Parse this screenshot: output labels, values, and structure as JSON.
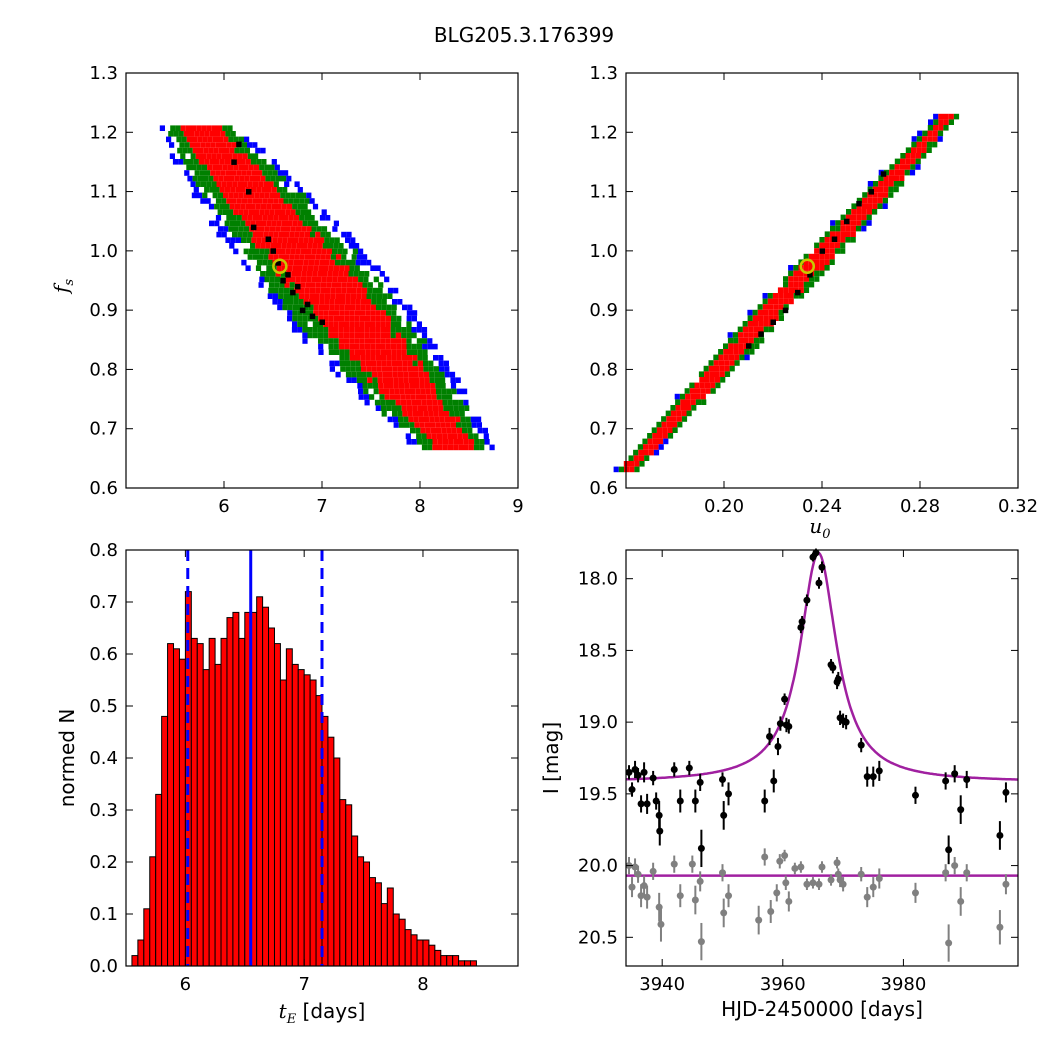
{
  "figure": {
    "title": "BLG205.3.176399"
  },
  "chart_data": [
    {
      "type": "scatter",
      "name": "fs-vs-tE-posterior",
      "xlim": [
        5,
        9
      ],
      "ylim": [
        0.6,
        1.3
      ],
      "xticks": [
        "6",
        "7",
        "8",
        "9"
      ],
      "yticks": [
        "0.6",
        "0.7",
        "0.8",
        "0.9",
        "1.0",
        "1.1",
        "1.2",
        "1.3"
      ],
      "xlabel": "",
      "ylabel": "f",
      "ylabel_sub": "s",
      "colors": {
        "outer": "#0000ff",
        "mid": "#008000",
        "inner": "#ff0000",
        "core": "#000000",
        "best": "#c8c800"
      },
      "best_fit": {
        "x": 6.57,
        "y": 0.974
      },
      "band": {
        "x_start": 5.72,
        "y_start": 1.21,
        "x_end": 8.3,
        "y_end": 0.68,
        "inner_half_width": 0.35,
        "mid_half_width": 0.55,
        "outer_half_width": 0.7
      },
      "core_points": [
        [
          6.1,
          1.15
        ],
        [
          6.25,
          1.1
        ],
        [
          6.3,
          1.04
        ],
        [
          6.5,
          1.0
        ],
        [
          6.55,
          0.98
        ],
        [
          6.6,
          0.95
        ],
        [
          6.7,
          0.93
        ],
        [
          6.8,
          0.9
        ],
        [
          6.9,
          0.89
        ],
        [
          7.0,
          0.88
        ],
        [
          6.15,
          1.18
        ],
        [
          6.45,
          1.02
        ],
        [
          6.65,
          0.96
        ],
        [
          6.75,
          0.94
        ],
        [
          6.85,
          0.91
        ]
      ]
    },
    {
      "type": "scatter",
      "name": "fs-vs-u0-posterior",
      "xlim": [
        0.16,
        0.32
      ],
      "ylim": [
        0.6,
        1.3
      ],
      "xticks": [
        "0.20",
        "0.24",
        "0.28",
        "0.32"
      ],
      "yticks": [
        "0.6",
        "0.7",
        "0.8",
        "0.9",
        "1.0",
        "1.1",
        "1.2",
        "1.3"
      ],
      "xlabel": "u",
      "xlabel_sub": "0",
      "colors": {
        "outer": "#0000ff",
        "mid": "#008000",
        "inner": "#ff0000",
        "core": "#000000",
        "best": "#c8c800"
      },
      "best_fit": {
        "x": 0.234,
        "y": 0.974
      },
      "band": {
        "x_start": 0.162,
        "y_start": 0.645,
        "x_end": 0.288,
        "y_end": 1.22,
        "inner_half_width": 0.0045,
        "mid_half_width": 0.007,
        "outer_half_width": 0.0085
      },
      "core_points": [
        [
          0.215,
          0.86
        ],
        [
          0.22,
          0.88
        ],
        [
          0.225,
          0.9
        ],
        [
          0.23,
          0.93
        ],
        [
          0.235,
          0.96
        ],
        [
          0.24,
          1.0
        ],
        [
          0.245,
          1.02
        ],
        [
          0.25,
          1.05
        ],
        [
          0.255,
          1.08
        ],
        [
          0.26,
          1.1
        ],
        [
          0.265,
          1.13
        ],
        [
          0.21,
          0.84
        ]
      ]
    },
    {
      "type": "bar",
      "name": "tE-histogram",
      "xlim": [
        5.5,
        8.8
      ],
      "ylim": [
        0.0,
        0.8
      ],
      "xticks": [
        "6",
        "7",
        "8"
      ],
      "yticks": [
        "0.0",
        "0.1",
        "0.2",
        "0.3",
        "0.4",
        "0.5",
        "0.6",
        "0.7",
        "0.8"
      ],
      "xlabel_sym": "t",
      "xlabel_sub": "E",
      "xlabel_rest": " [days]",
      "ylabel": "normed N",
      "bin_start": 5.55,
      "bin_width": 0.05,
      "values": [
        0.02,
        0.05,
        0.11,
        0.21,
        0.33,
        0.48,
        0.62,
        0.61,
        0.59,
        0.72,
        0.63,
        0.62,
        0.57,
        0.63,
        0.58,
        0.63,
        0.67,
        0.68,
        0.63,
        0.68,
        0.68,
        0.71,
        0.69,
        0.65,
        0.62,
        0.55,
        0.61,
        0.58,
        0.57,
        0.56,
        0.55,
        0.52,
        0.48,
        0.44,
        0.4,
        0.32,
        0.31,
        0.25,
        0.21,
        0.2,
        0.17,
        0.16,
        0.12,
        0.15,
        0.1,
        0.09,
        0.07,
        0.06,
        0.05,
        0.05,
        0.04,
        0.03,
        0.02,
        0.02,
        0.02,
        0.01,
        0.01,
        0.01,
        0.0,
        0.0
      ],
      "colors": {
        "bar": "#ff0000",
        "edge": "#000000",
        "line": "#0000ff"
      },
      "median": 6.55,
      "lower": 6.02,
      "upper": 7.15
    },
    {
      "type": "line",
      "name": "light-curve",
      "xlim": [
        3934,
        3999
      ],
      "ylim": [
        20.7,
        17.8
      ],
      "xticks": [
        "3940",
        "3960",
        "3980"
      ],
      "yticks": [
        "18.0",
        "18.5",
        "19.0",
        "19.5",
        "20.0",
        "20.5"
      ],
      "xlabel": "HJD-2450000 [days]",
      "ylabel": "I [mag]",
      "colors": {
        "model": "#a020a0",
        "data1": "#000000",
        "data2": "#808080"
      },
      "model": {
        "t0": 3965.9,
        "base": 19.42,
        "peak": 17.82,
        "width": 3.7
      },
      "model2_level": 20.07,
      "series": [
        {
          "name": "I-band",
          "points": [
            [
              3934.5,
              19.35,
              0.05
            ],
            [
              3935,
              19.47,
              0.05
            ],
            [
              3935.5,
              19.33,
              0.06
            ],
            [
              3936,
              19.37,
              0.05
            ],
            [
              3936.5,
              19.57,
              0.06
            ],
            [
              3937,
              19.35,
              0.07
            ],
            [
              3937.5,
              19.57,
              0.07
            ],
            [
              3938.5,
              19.39,
              0.05
            ],
            [
              3939,
              19.55,
              0.06
            ],
            [
              3939.5,
              19.65,
              0.1
            ],
            [
              3939.6,
              19.76,
              0.1
            ],
            [
              3942,
              19.33,
              0.05
            ],
            [
              3943,
              19.55,
              0.08
            ],
            [
              3944.5,
              19.32,
              0.05
            ],
            [
              3945.5,
              19.55,
              0.08
            ],
            [
              3946.3,
              19.42,
              0.06
            ],
            [
              3946.5,
              19.88,
              0.13
            ],
            [
              3950,
              19.4,
              0.05
            ],
            [
              3950.2,
              19.65,
              0.1
            ],
            [
              3951,
              19.5,
              0.08
            ],
            [
              3957,
              19.55,
              0.08
            ],
            [
              3957.8,
              19.1,
              0.06
            ],
            [
              3958.5,
              19.41,
              0.08
            ],
            [
              3959.2,
              19.17,
              0.06
            ],
            [
              3959.6,
              19.01,
              0.05
            ],
            [
              3960.3,
              18.84,
              0.04
            ],
            [
              3960.6,
              19.02,
              0.05
            ],
            [
              3961,
              19.03,
              0.05
            ],
            [
              3963,
              18.34,
              0.04
            ],
            [
              3963.2,
              18.3,
              0.04
            ],
            [
              3964,
              18.15,
              0.04
            ],
            [
              3965,
              17.85,
              0.03
            ],
            [
              3965.5,
              17.82,
              0.03
            ],
            [
              3966,
              18.03,
              0.04
            ],
            [
              3966.5,
              17.92,
              0.04
            ],
            [
              3968,
              18.6,
              0.04
            ],
            [
              3968.3,
              18.62,
              0.04
            ],
            [
              3969,
              18.72,
              0.05
            ],
            [
              3969.2,
              18.7,
              0.05
            ],
            [
              3969.5,
              18.97,
              0.05
            ],
            [
              3970,
              18.99,
              0.05
            ],
            [
              3970.5,
              19.0,
              0.05
            ],
            [
              3973,
              19.16,
              0.05
            ],
            [
              3974,
              19.38,
              0.07
            ],
            [
              3975,
              19.38,
              0.07
            ],
            [
              3976,
              19.34,
              0.07
            ],
            [
              3982,
              19.51,
              0.06
            ],
            [
              3987,
              19.41,
              0.06
            ],
            [
              3987.5,
              19.89,
              0.1
            ],
            [
              3988.5,
              19.36,
              0.06
            ],
            [
              3989.5,
              19.61,
              0.1
            ],
            [
              3990.5,
              19.4,
              0.06
            ],
            [
              3996,
              19.79,
              0.1
            ],
            [
              3997,
              19.49,
              0.07
            ]
          ]
        },
        {
          "name": "V-band",
          "points": [
            [
              3934.5,
              20.0,
              0.06
            ],
            [
              3935,
              20.15,
              0.07
            ],
            [
              3935.5,
              20.01,
              0.06
            ],
            [
              3936,
              20.06,
              0.06
            ],
            [
              3936.5,
              20.21,
              0.08
            ],
            [
              3937,
              20.14,
              0.07
            ],
            [
              3937.5,
              20.22,
              0.08
            ],
            [
              3938.5,
              20.04,
              0.06
            ],
            [
              3939.5,
              20.29,
              0.1
            ],
            [
              3939.8,
              20.41,
              0.12
            ],
            [
              3942,
              19.99,
              0.06
            ],
            [
              3943,
              20.21,
              0.08
            ],
            [
              3945,
              19.99,
              0.06
            ],
            [
              3945.5,
              20.24,
              0.1
            ],
            [
              3946.3,
              20.11,
              0.07
            ],
            [
              3946.5,
              20.53,
              0.13
            ],
            [
              3950,
              20.05,
              0.06
            ],
            [
              3950.2,
              20.33,
              0.1
            ],
            [
              3951,
              20.21,
              0.08
            ],
            [
              3956,
              20.38,
              0.1
            ],
            [
              3957,
              19.94,
              0.06
            ],
            [
              3958,
              20.32,
              0.08
            ],
            [
              3959,
              20.19,
              0.06
            ],
            [
              3959.5,
              19.97,
              0.05
            ],
            [
              3960.3,
              19.93,
              0.04
            ],
            [
              3960.5,
              20.12,
              0.05
            ],
            [
              3961,
              20.25,
              0.07
            ],
            [
              3962,
              20.02,
              0.04
            ],
            [
              3963,
              20.01,
              0.04
            ],
            [
              3964,
              20.13,
              0.04
            ],
            [
              3965,
              20.12,
              0.04
            ],
            [
              3966,
              20.13,
              0.04
            ],
            [
              3966.5,
              20.01,
              0.04
            ],
            [
              3968,
              20.1,
              0.04
            ],
            [
              3969,
              19.98,
              0.04
            ],
            [
              3969.2,
              20.06,
              0.04
            ],
            [
              3969.5,
              20.1,
              0.05
            ],
            [
              3970,
              20.13,
              0.05
            ],
            [
              3973,
              20.06,
              0.05
            ],
            [
              3974,
              20.22,
              0.07
            ],
            [
              3975,
              20.15,
              0.07
            ],
            [
              3976,
              20.09,
              0.07
            ],
            [
              3982,
              20.19,
              0.07
            ],
            [
              3987,
              20.05,
              0.06
            ],
            [
              3987.5,
              20.54,
              0.13
            ],
            [
              3988.5,
              20.0,
              0.06
            ],
            [
              3989.5,
              20.25,
              0.1
            ],
            [
              3990.5,
              20.05,
              0.06
            ],
            [
              3996,
              20.43,
              0.12
            ],
            [
              3997,
              20.13,
              0.07
            ]
          ]
        }
      ]
    }
  ]
}
